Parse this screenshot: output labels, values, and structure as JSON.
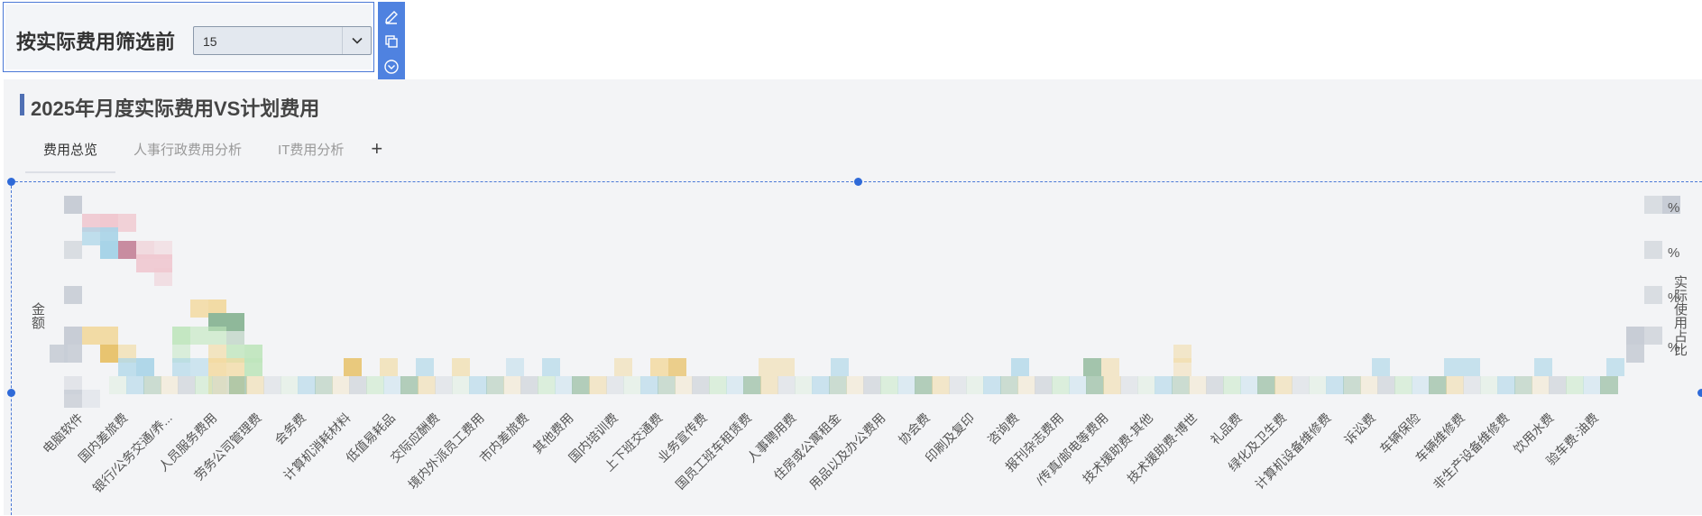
{
  "filter": {
    "label": "按实际费用筛选前",
    "selected": "15"
  },
  "toolbar": {
    "edit_icon": "edit-icon",
    "copy_icon": "copy-icon",
    "more_icon": "chevron-circle-icon"
  },
  "panel": {
    "title": "2025年月度实际费用VS计划费用",
    "tabs": [
      "费用总览",
      "人事行政费用分析",
      "IT费用分析"
    ],
    "add_tab": "+"
  },
  "chart_data": {
    "type": "bar",
    "ylabel": "金额",
    "y2label": "实际使用占比",
    "y2_tick_suffix": "%",
    "categories": [
      "电脑软件",
      "国内差旅费",
      "银行/公务交通/养...",
      "人员服务费用",
      "劳务公司管理费",
      "会务费",
      "计算机消耗材料",
      "低值易耗品",
      "交际应酬费",
      "境内外派员工费用",
      "市内差旅费",
      "其他费用",
      "国内培训费",
      "上下班交通费",
      "业务宣传费",
      "国员工班车租赁费",
      "人事聘用费",
      "住房或公寓租金",
      "用品以及办公费用",
      "协会费",
      "印刷及复印",
      "咨询费",
      "报刊杂志费用",
      "/传真/邮电等费用",
      "技术援助费-其他",
      "技术援助费-博世",
      "礼品费",
      "绿化及卫生费",
      "计算机设备维修费",
      "诉讼费",
      "车辆保险",
      "车辆维修费",
      "非生产设备维修费",
      "饮用水费",
      "验车费-油费"
    ],
    "colors": {
      "actual": "#c8cdd6",
      "plan": "#f0c8d0",
      "blue": "#a8d4e8",
      "orange": "#f2d89c",
      "green": "#bfe6bd",
      "darkgreen": "#8fb89a"
    }
  }
}
